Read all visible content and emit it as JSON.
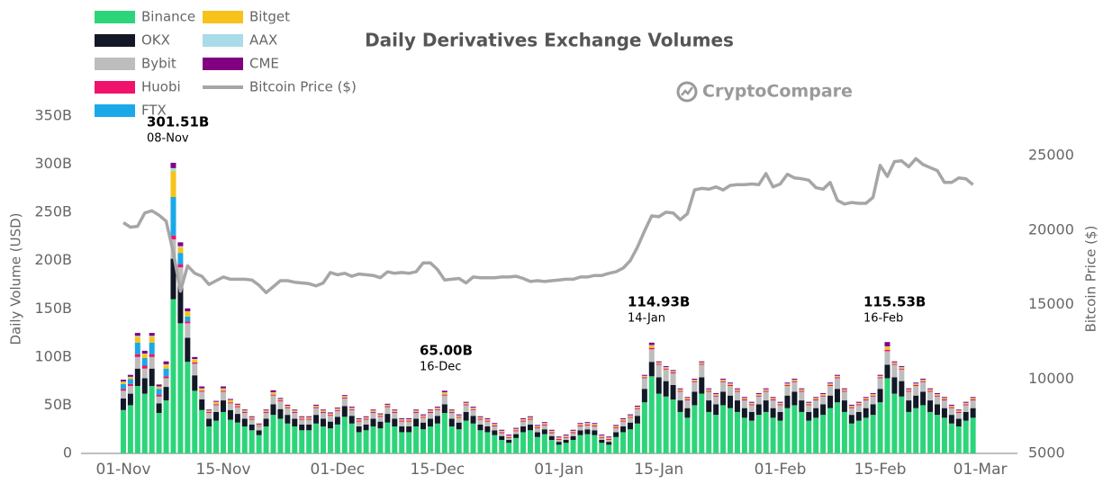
{
  "chart_data": {
    "type": "bar",
    "title": "Daily Derivatives Exchange Volumes",
    "watermark": "CryptoCompare",
    "ylabel": "Daily Volume (USD)",
    "y2label": "Bitcoin Price ($)",
    "ylim": [
      0,
      350
    ],
    "yticks": [
      0,
      {
        "value": 50,
        "label": "50B"
      },
      {
        "value": 100,
        "label": "100B"
      },
      {
        "value": 150,
        "label": "150B"
      },
      {
        "value": 200,
        "label": "200B"
      },
      {
        "value": 250,
        "label": "250B"
      },
      {
        "value": 300,
        "label": "300B"
      },
      {
        "value": 350,
        "label": "350B"
      }
    ],
    "y2lim": [
      5000,
      27660
    ],
    "y2ticks": [
      5000,
      10000,
      15000,
      20000,
      25000
    ],
    "grid": false,
    "legend": "top-left",
    "categories": [
      "01-Nov",
      null,
      null,
      null,
      null,
      null,
      null,
      null,
      null,
      null,
      null,
      null,
      null,
      null,
      "15-Nov",
      null,
      null,
      null,
      null,
      null,
      null,
      null,
      null,
      null,
      null,
      null,
      null,
      null,
      null,
      null,
      "01-Dec",
      null,
      null,
      null,
      null,
      null,
      null,
      null,
      null,
      null,
      null,
      null,
      null,
      null,
      "15-Dec",
      null,
      null,
      null,
      null,
      null,
      null,
      null,
      null,
      null,
      null,
      null,
      null,
      null,
      null,
      null,
      null,
      "01-Jan",
      null,
      null,
      null,
      null,
      null,
      null,
      null,
      null,
      null,
      null,
      null,
      null,
      null,
      "15-Jan",
      null,
      null,
      null,
      null,
      null,
      null,
      null,
      null,
      null,
      null,
      null,
      null,
      null,
      null,
      null,
      null,
      "01-Feb",
      null,
      null,
      null,
      null,
      null,
      null,
      null,
      null,
      null,
      null,
      null,
      null,
      null,
      "15-Feb",
      null,
      null,
      null,
      null,
      null,
      null,
      null,
      null,
      null,
      null,
      null,
      null,
      null,
      "01-Mar"
    ],
    "annotations": [
      {
        "text": "301.51B",
        "date": "08-Nov"
      },
      {
        "text": "65.00B",
        "date": "16-Dec"
      },
      {
        "text": "114.93B",
        "date": "14-Jan"
      },
      {
        "text": "115.53B",
        "date": "16-Feb"
      }
    ],
    "series": [
      {
        "name": "Binance",
        "color": "#2ed47a",
        "values": [
          45,
          50,
          70,
          62,
          70,
          42,
          55,
          160,
          135,
          95,
          65,
          45,
          28,
          34,
          43,
          35,
          32,
          28,
          24,
          19,
          28,
          40,
          36,
          31,
          28,
          24,
          24,
          31,
          28,
          26,
          30,
          38,
          31,
          22,
          24,
          28,
          26,
          32,
          28,
          22,
          22,
          28,
          25,
          28,
          31,
          42,
          28,
          25,
          34,
          31,
          24,
          22,
          19,
          14,
          11,
          16,
          22,
          24,
          17,
          20,
          14,
          9,
          11,
          14,
          19,
          20,
          19,
          11,
          9,
          17,
          22,
          25,
          31,
          53,
          80,
          62,
          59,
          56,
          43,
          37,
          50,
          62,
          43,
          40,
          50,
          47,
          43,
          37,
          34,
          40,
          43,
          37,
          34,
          47,
          50,
          43,
          34,
          37,
          40,
          47,
          53,
          43,
          31,
          34,
          37,
          40,
          53,
          78,
          62,
          59,
          43,
          47,
          50,
          43,
          40,
          37,
          31,
          28,
          34,
          37,
          null
        ]
      },
      {
        "name": "OKX",
        "color": "#121826",
        "values": [
          12,
          12,
          18,
          16,
          18,
          10,
          14,
          42,
          40,
          25,
          16,
          11,
          8,
          9,
          12,
          10,
          9,
          8,
          6,
          5,
          8,
          11,
          10,
          9,
          8,
          6,
          6,
          9,
          8,
          7,
          8,
          11,
          8,
          6,
          6,
          8,
          7,
          9,
          8,
          6,
          6,
          8,
          7,
          8,
          8,
          9,
          8,
          7,
          9,
          8,
          6,
          6,
          5,
          4,
          3,
          4,
          6,
          6,
          5,
          5,
          4,
          3,
          3,
          4,
          5,
          5,
          5,
          3,
          3,
          5,
          6,
          7,
          8,
          14,
          15,
          17,
          16,
          15,
          12,
          10,
          14,
          17,
          12,
          11,
          14,
          13,
          12,
          10,
          9,
          11,
          12,
          10,
          9,
          13,
          14,
          12,
          9,
          10,
          11,
          13,
          14,
          12,
          9,
          9,
          10,
          11,
          14,
          14,
          17,
          16,
          12,
          13,
          14,
          12,
          11,
          10,
          9,
          8,
          9,
          10,
          null
        ]
      },
      {
        "name": "Bybit",
        "color": "#bdbdbd",
        "values": [
          8,
          8,
          12,
          10,
          12,
          7,
          9,
          20,
          18,
          15,
          12,
          8,
          6,
          7,
          9,
          7,
          7,
          6,
          5,
          4,
          6,
          9,
          8,
          7,
          6,
          5,
          5,
          7,
          6,
          6,
          6,
          8,
          6,
          5,
          5,
          6,
          5,
          7,
          6,
          5,
          5,
          6,
          5,
          6,
          6,
          9,
          6,
          5,
          7,
          6,
          5,
          5,
          4,
          3,
          2,
          3,
          5,
          5,
          4,
          4,
          3,
          2,
          2,
          3,
          4,
          4,
          4,
          2,
          2,
          4,
          5,
          5,
          7,
          11,
          13,
          13,
          12,
          12,
          9,
          8,
          10,
          13,
          9,
          8,
          10,
          10,
          9,
          8,
          7,
          8,
          9,
          8,
          7,
          10,
          10,
          9,
          7,
          8,
          8,
          10,
          11,
          9,
          7,
          7,
          8,
          8,
          11,
          14,
          13,
          12,
          9,
          10,
          10,
          9,
          8,
          8,
          7,
          6,
          7,
          8,
          null
        ]
      },
      {
        "name": "Huobi",
        "color": "#f0136b",
        "values": [
          2,
          2,
          3,
          3,
          3,
          2,
          2,
          4,
          3,
          2,
          1.5,
          1,
          1,
          1,
          1,
          1,
          1,
          1,
          1,
          0.5,
          1,
          1,
          1,
          1,
          1,
          1,
          1,
          1,
          1,
          1,
          1,
          1,
          1,
          1,
          1,
          1,
          1,
          1,
          1,
          1,
          1,
          1,
          1,
          1,
          1,
          1,
          1,
          1,
          1,
          1,
          1,
          1,
          1,
          1,
          1,
          1,
          1,
          1,
          1,
          1,
          1,
          1,
          1,
          1,
          1,
          1,
          1,
          1,
          1,
          1,
          1,
          1,
          1,
          1,
          1.5,
          1,
          1,
          1,
          1,
          1,
          1,
          1,
          1,
          1,
          1,
          1,
          1,
          1,
          1,
          1,
          1,
          1,
          1,
          1,
          1,
          1,
          1,
          1,
          1,
          1,
          1,
          1,
          1,
          1,
          1,
          1,
          1,
          1.5,
          1,
          1,
          1,
          1,
          1,
          1,
          1,
          1,
          1,
          1,
          1,
          1,
          null
        ]
      },
      {
        "name": "FTX",
        "color": "#1aa9e8",
        "values": [
          5,
          5,
          12,
          8,
          12,
          6,
          8,
          40,
          12,
          5,
          0,
          0,
          0,
          0,
          0,
          0,
          0,
          0,
          0,
          0,
          0,
          0,
          0,
          0,
          0,
          0,
          0,
          0,
          0,
          0,
          0,
          0,
          0,
          0,
          0,
          0,
          0,
          0,
          0,
          0,
          0,
          0,
          0,
          0,
          0,
          0,
          0,
          0,
          0,
          0,
          0,
          0,
          0,
          0,
          0,
          0,
          0,
          0,
          0,
          0,
          0,
          0,
          0,
          0,
          0,
          0,
          0,
          0,
          0,
          0,
          0,
          0,
          0,
          0,
          0,
          0,
          0,
          0,
          0,
          0,
          0,
          0,
          0,
          0,
          0,
          0,
          0,
          0,
          0,
          0,
          0,
          0,
          0,
          0,
          0,
          0,
          0,
          0,
          0,
          0,
          0,
          0,
          0,
          0,
          0,
          0,
          0,
          0,
          0,
          0,
          0,
          0,
          0,
          0,
          0,
          0,
          0,
          0,
          0,
          0,
          null
        ]
      },
      {
        "name": "Bitget",
        "color": "#f7c21a",
        "values": [
          2,
          2,
          6,
          4,
          6,
          2,
          4,
          27,
          6,
          5,
          3,
          2,
          1,
          2,
          2,
          2,
          1,
          1,
          1,
          1,
          1,
          2,
          1,
          1,
          1,
          1,
          1,
          1,
          1,
          1,
          1,
          1,
          1,
          1,
          1,
          1,
          1,
          1,
          1,
          1,
          1,
          1,
          1,
          1,
          1,
          2,
          1,
          1,
          1,
          1,
          1,
          1,
          1,
          1,
          1,
          1,
          1,
          1,
          1,
          1,
          1,
          1,
          1,
          1,
          1,
          1,
          1,
          1,
          1,
          1,
          1,
          1,
          1,
          1,
          2.5,
          1,
          1,
          1,
          1,
          1,
          1,
          1,
          1,
          1,
          1,
          1,
          1,
          1,
          1,
          1,
          1,
          1,
          1,
          1,
          1,
          1,
          1,
          1,
          1,
          1,
          1,
          1,
          1,
          1,
          1,
          1,
          1,
          3,
          1,
          1,
          1,
          1,
          1,
          1,
          1,
          1,
          1,
          1,
          1,
          1,
          null
        ]
      },
      {
        "name": "AAX",
        "color": "#a8dce8",
        "values": [
          0.5,
          0.5,
          1,
          0.5,
          1,
          0.5,
          0.5,
          3,
          1,
          0.5,
          0.5,
          0.5,
          0.5,
          0.5,
          0.5,
          0.5,
          0.5,
          0.5,
          0.5,
          0.5,
          0.5,
          0.5,
          0.5,
          0.5,
          0.5,
          0.5,
          0.5,
          0.5,
          0.5,
          0.5,
          0.5,
          0.5,
          0.5,
          0.5,
          0.5,
          0.5,
          0.5,
          0.5,
          0.5,
          0.5,
          0.5,
          0.5,
          0.5,
          0.5,
          0.5,
          0.5,
          0.5,
          0.5,
          0.5,
          0.5,
          0.5,
          0.5,
          0.5,
          0.5,
          0.5,
          0.5,
          0.5,
          0.5,
          0.5,
          0.5,
          0.5,
          0.5,
          0.5,
          0.5,
          0.5,
          0.5,
          0.5,
          0.5,
          0.5,
          0.5,
          0.5,
          0.5,
          0.5,
          0.5,
          0.5,
          0.5,
          0.5,
          0.5,
          0.5,
          0.5,
          0.5,
          0.5,
          0.5,
          0.5,
          0.5,
          0.5,
          0.5,
          0.5,
          0.5,
          0.5,
          0.5,
          0.5,
          0.5,
          0.5,
          0.5,
          0.5,
          0.5,
          0.5,
          0.5,
          0.5,
          0.5,
          0.5,
          0.5,
          0.5,
          0.5,
          0.5,
          0.5,
          0.5,
          0.5,
          0.5,
          0.5,
          0.5,
          0.5,
          0.5,
          0.5,
          0.5,
          0.5,
          0.5,
          0.5,
          0.5,
          null
        ]
      },
      {
        "name": "CME",
        "color": "#800080",
        "values": [
          2,
          2,
          3,
          3,
          3,
          2,
          3,
          5.51,
          4,
          3,
          2,
          2,
          1,
          1,
          2,
          1,
          1,
          1,
          1,
          1,
          1,
          2,
          1,
          1,
          1,
          1,
          1,
          1,
          1,
          1,
          1,
          1,
          1,
          1,
          1,
          1,
          1,
          1,
          1,
          1,
          1,
          1,
          1,
          1,
          1,
          1.5,
          1,
          1,
          1,
          1,
          1,
          1,
          1,
          1,
          1,
          1,
          1,
          1,
          1,
          1,
          1,
          1,
          1,
          1,
          1,
          1,
          1,
          1,
          1,
          1,
          1,
          1,
          1,
          1,
          2.43,
          1,
          1,
          1,
          1,
          1,
          1,
          1,
          1,
          1,
          1,
          1,
          1,
          1,
          1,
          1,
          1,
          1,
          1,
          1,
          1,
          1,
          1,
          1,
          1,
          1,
          1,
          1,
          1,
          1,
          1,
          1,
          1,
          4.53,
          1,
          1,
          1,
          1,
          1,
          1,
          1,
          1,
          1,
          1,
          1,
          1,
          null
        ]
      },
      {
        "name": "Bitcoin Price ($)",
        "color": "#a6a6a6",
        "axis": "y2",
        "values": [
          20500,
          20200,
          20250,
          21150,
          21300,
          21000,
          20600,
          18500,
          15900,
          17600,
          17100,
          16900,
          16350,
          16600,
          16850,
          16700,
          16700,
          16700,
          16650,
          16300,
          15800,
          16200,
          16600,
          16600,
          16500,
          16450,
          16400,
          16250,
          16450,
          17150,
          17000,
          17100,
          16900,
          17050,
          17000,
          16950,
          16800,
          17200,
          17100,
          17150,
          17100,
          17200,
          17800,
          17800,
          17350,
          16650,
          16700,
          16750,
          16450,
          16850,
          16800,
          16800,
          16800,
          16850,
          16850,
          16900,
          16750,
          16550,
          16600,
          16550,
          16600,
          16650,
          16700,
          16700,
          16850,
          16850,
          16950,
          16950,
          17100,
          17200,
          17450,
          17950,
          18850,
          19950,
          20950,
          20900,
          21200,
          21150,
          20700,
          21100,
          22700,
          22800,
          22750,
          22900,
          22700,
          23000,
          23050,
          23050,
          23100,
          23050,
          23800,
          22900,
          23100,
          23750,
          23500,
          23450,
          23350,
          22850,
          22750,
          23200,
          22000,
          21750,
          21850,
          21800,
          21800,
          22200,
          24350,
          23600,
          24600,
          24650,
          24250,
          24800,
          24400,
          24200,
          24000,
          23200,
          23200,
          23500,
          23450,
          23050,
          null
        ]
      }
    ]
  }
}
